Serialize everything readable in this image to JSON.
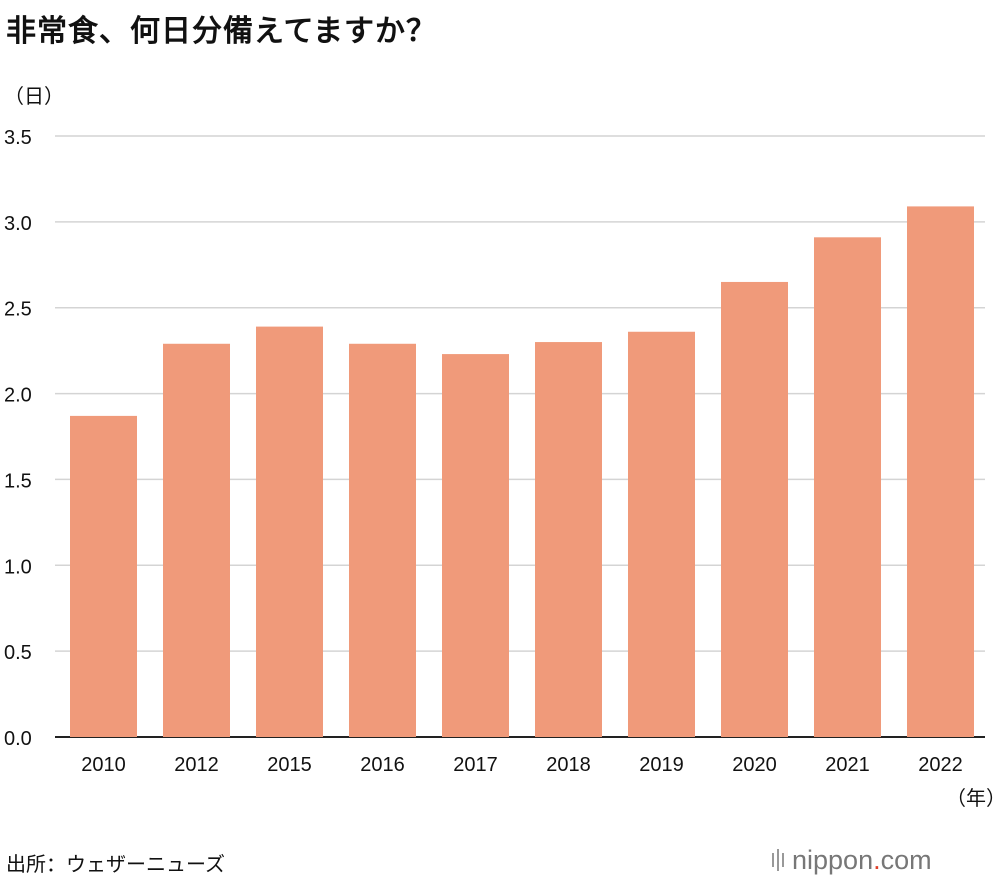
{
  "header": {
    "title": "非常食、何日分備えてますか？"
  },
  "axis": {
    "y_unit": "（日）",
    "x_unit": "（年）"
  },
  "footer": {
    "source": "出所：ウェザーニューズ",
    "logo": "nippon.com"
  },
  "colors": {
    "bar": "#f09a7a",
    "grid": "#d4d4d4",
    "axis": "#222222",
    "logo_dot": "#e0402a"
  },
  "chart_data": {
    "type": "bar",
    "title": "非常食、何日分備えてますか？",
    "ylabel": "（日）",
    "xlabel": "（年）",
    "categories": [
      "2010",
      "2012",
      "2015",
      "2016",
      "2017",
      "2018",
      "2019",
      "2020",
      "2021",
      "2022"
    ],
    "values": [
      1.87,
      2.29,
      2.39,
      2.29,
      2.23,
      2.3,
      2.36,
      2.65,
      2.91,
      3.09
    ],
    "ylim": [
      0,
      3.5
    ],
    "yticks": [
      0.0,
      0.5,
      1.0,
      1.5,
      2.0,
      2.5,
      3.0,
      3.5
    ],
    "grid": true,
    "legend": "none"
  }
}
